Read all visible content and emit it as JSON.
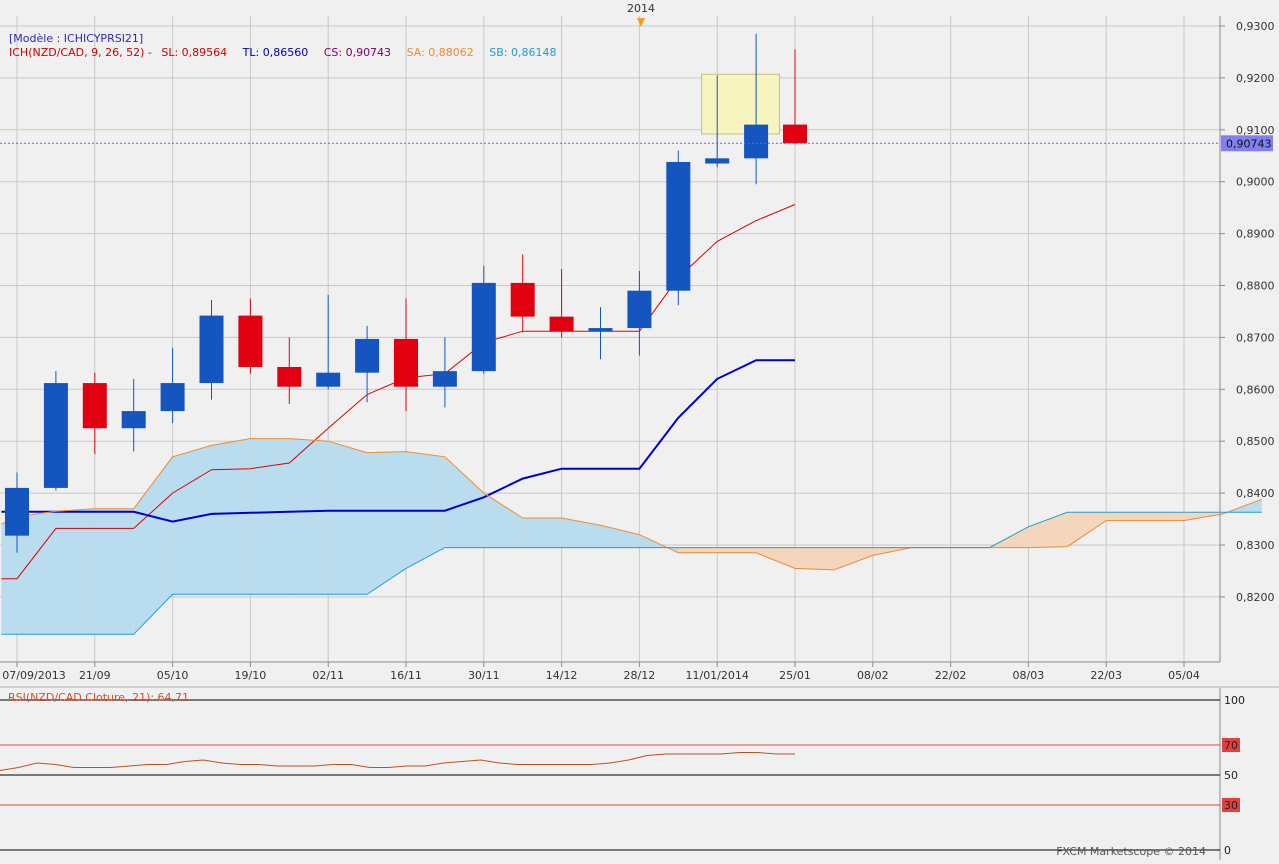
{
  "header": {
    "year_marker": "2014"
  },
  "legend": {
    "model": "[Modèle : ICHICYPRSI21]",
    "ich_label": "ICH(NZD/CAD, 9, 26, 52) -",
    "sl": "SL: 0,89564",
    "tl": "TL: 0,86560",
    "cs": "CS: 0,90743",
    "sa": "SA: 0,88062",
    "sb": "SB: 0,86148"
  },
  "rsi": {
    "label": "RSI(NZD/CAD.Cloture, 21): 64,71",
    "levels": [
      "100",
      "70",
      "50",
      "30",
      "0"
    ],
    "level_values": [
      100,
      70,
      50,
      30,
      0
    ],
    "colors": {
      "line": "#c05020",
      "band": "#e04a3a",
      "mid": "#000000"
    },
    "values": [
      53,
      55,
      58,
      57,
      55,
      55,
      55,
      56,
      57,
      57,
      59,
      60,
      58,
      57,
      57,
      56,
      56,
      56,
      57,
      57,
      55,
      55,
      56,
      56,
      58,
      59,
      60,
      58,
      57,
      57,
      57,
      57,
      57,
      58,
      60,
      63,
      64,
      64,
      64,
      64,
      65,
      65,
      64,
      64
    ]
  },
  "footer": {
    "credit": "FXCM Marketscope © 2014"
  },
  "chart_data": {
    "type": "candlestick",
    "instrument": "NZD/CAD",
    "current_price_label": "0,90743",
    "ylim": [
      0.812,
      0.936
    ],
    "y_ticks": [
      {
        "v": 0.82,
        "label": "0,8200"
      },
      {
        "v": 0.83,
        "label": "0,8300"
      },
      {
        "v": 0.84,
        "label": "0,8400"
      },
      {
        "v": 0.85,
        "label": "0,8500"
      },
      {
        "v": 0.86,
        "label": "0,8600"
      },
      {
        "v": 0.87,
        "label": "0,8700"
      },
      {
        "v": 0.88,
        "label": "0,8800"
      },
      {
        "v": 0.89,
        "label": "0,8900"
      },
      {
        "v": 0.9,
        "label": "0,9000"
      },
      {
        "v": 0.91,
        "label": "0,9100"
      },
      {
        "v": 0.92,
        "label": "0,9200"
      },
      {
        "v": 0.93,
        "label": "0,9300"
      }
    ],
    "x_ticks": [
      "07/09/2013",
      "21/09",
      "05/10",
      "19/10",
      "02/11",
      "16/11",
      "30/11",
      "14/12",
      "28/12",
      "11/01/2014",
      "25/01",
      "08/02",
      "22/02",
      "08/03",
      "22/03",
      "05/04"
    ],
    "candles": [
      {
        "o": 0.8318,
        "h": 0.844,
        "l": 0.8285,
        "c": 0.841
      },
      {
        "o": 0.841,
        "h": 0.8635,
        "l": 0.8405,
        "c": 0.8612
      },
      {
        "o": 0.8612,
        "h": 0.8632,
        "l": 0.8475,
        "c": 0.8525
      },
      {
        "o": 0.8525,
        "h": 0.862,
        "l": 0.848,
        "c": 0.8558
      },
      {
        "o": 0.8558,
        "h": 0.868,
        "l": 0.8535,
        "c": 0.8612
      },
      {
        "o": 0.8612,
        "h": 0.8772,
        "l": 0.858,
        "c": 0.8742
      },
      {
        "o": 0.8742,
        "h": 0.8775,
        "l": 0.863,
        "c": 0.8643
      },
      {
        "o": 0.8643,
        "h": 0.87,
        "l": 0.8572,
        "c": 0.8605
      },
      {
        "o": 0.8605,
        "h": 0.8782,
        "l": 0.86,
        "c": 0.8632
      },
      {
        "o": 0.8632,
        "h": 0.8722,
        "l": 0.8575,
        "c": 0.8697
      },
      {
        "o": 0.8697,
        "h": 0.8775,
        "l": 0.8558,
        "c": 0.8605
      },
      {
        "o": 0.8605,
        "h": 0.87,
        "l": 0.8565,
        "c": 0.8635
      },
      {
        "o": 0.8635,
        "h": 0.8838,
        "l": 0.863,
        "c": 0.8805
      },
      {
        "o": 0.8805,
        "h": 0.886,
        "l": 0.871,
        "c": 0.874
      },
      {
        "o": 0.874,
        "h": 0.8832,
        "l": 0.87,
        "c": 0.8712
      },
      {
        "o": 0.8712,
        "h": 0.8758,
        "l": 0.8658,
        "c": 0.8718
      },
      {
        "o": 0.8718,
        "h": 0.8828,
        "l": 0.8665,
        "c": 0.879
      },
      {
        "o": 0.879,
        "h": 0.906,
        "l": 0.8762,
        "c": 0.9038
      },
      {
        "o": 0.9035,
        "h": 0.9205,
        "l": 0.9028,
        "c": 0.9045
      },
      {
        "o": 0.9045,
        "h": 0.9285,
        "l": 0.8995,
        "c": 0.911
      },
      {
        "o": 0.911,
        "h": 0.9255,
        "l": 0.9072,
        "c": 0.9074
      }
    ],
    "lines": {
      "tenkan": {
        "color": "#dd0000",
        "points": [
          [
            -0.4,
            0.8235
          ],
          [
            0,
            0.8235
          ],
          [
            1,
            0.8332
          ],
          [
            2,
            0.8332
          ],
          [
            3,
            0.8332
          ],
          [
            4,
            0.84
          ],
          [
            5,
            0.8445
          ],
          [
            6,
            0.8447
          ],
          [
            7,
            0.8458
          ],
          [
            8,
            0.8525
          ],
          [
            9,
            0.859
          ],
          [
            10,
            0.8622
          ],
          [
            11,
            0.863
          ],
          [
            12,
            0.869
          ],
          [
            13,
            0.8712
          ],
          [
            14,
            0.8712
          ],
          [
            15,
            0.8712
          ],
          [
            16,
            0.8712
          ],
          [
            17,
            0.8815
          ],
          [
            18,
            0.8885
          ],
          [
            19,
            0.8925
          ],
          [
            20,
            0.8956
          ]
        ]
      },
      "kijun": {
        "color": "#0000cc",
        "points": [
          [
            -0.4,
            0.8364
          ],
          [
            0,
            0.8364
          ],
          [
            1,
            0.8364
          ],
          [
            2,
            0.8364
          ],
          [
            3,
            0.8364
          ],
          [
            4,
            0.8345
          ],
          [
            5,
            0.836
          ],
          [
            6,
            0.8362
          ],
          [
            7,
            0.8364
          ],
          [
            8,
            0.8366
          ],
          [
            9,
            0.8366
          ],
          [
            10,
            0.8366
          ],
          [
            11,
            0.8366
          ],
          [
            12,
            0.8392
          ],
          [
            13,
            0.8428
          ],
          [
            14,
            0.8447
          ],
          [
            15,
            0.8447
          ],
          [
            16,
            0.8447
          ],
          [
            17,
            0.8545
          ],
          [
            18,
            0.862
          ],
          [
            19,
            0.8656
          ],
          [
            20,
            0.8656
          ]
        ]
      },
      "senkou_a": {
        "color": "#f08a30",
        "points": [
          [
            -0.4,
            0.834
          ],
          [
            0,
            0.8355
          ],
          [
            1,
            0.8365
          ],
          [
            2,
            0.837
          ],
          [
            3,
            0.837
          ],
          [
            4,
            0.847
          ],
          [
            5,
            0.8492
          ],
          [
            6,
            0.8505
          ],
          [
            7,
            0.8505
          ],
          [
            8,
            0.85
          ],
          [
            9,
            0.8478
          ],
          [
            10,
            0.848
          ],
          [
            11,
            0.847
          ],
          [
            12,
            0.84
          ],
          [
            13,
            0.8352
          ],
          [
            14,
            0.8352
          ],
          [
            15,
            0.8338
          ],
          [
            16,
            0.832
          ],
          [
            17,
            0.8285
          ],
          [
            18,
            0.8285
          ],
          [
            19,
            0.8285
          ],
          [
            20,
            0.8255
          ],
          [
            21,
            0.8252
          ],
          [
            22,
            0.828
          ],
          [
            23,
            0.8295
          ],
          [
            24,
            0.8295
          ],
          [
            25,
            0.8295
          ],
          [
            26,
            0.8295
          ],
          [
            27,
            0.8297
          ],
          [
            28,
            0.8347
          ],
          [
            29,
            0.8347
          ],
          [
            30,
            0.8347
          ],
          [
            31,
            0.836
          ],
          [
            32,
            0.8388
          ]
        ]
      },
      "senkou_b": {
        "color": "#1fa0d0",
        "points": [
          [
            -0.4,
            0.8128
          ],
          [
            0,
            0.8128
          ],
          [
            1,
            0.8128
          ],
          [
            2,
            0.8128
          ],
          [
            3,
            0.8128
          ],
          [
            4,
            0.8205
          ],
          [
            5,
            0.8205
          ],
          [
            6,
            0.8205
          ],
          [
            7,
            0.8205
          ],
          [
            8,
            0.8205
          ],
          [
            9,
            0.8205
          ],
          [
            10,
            0.8255
          ],
          [
            11,
            0.8295
          ],
          [
            12,
            0.8295
          ],
          [
            13,
            0.8295
          ],
          [
            14,
            0.8295
          ],
          [
            15,
            0.8295
          ],
          [
            16,
            0.8295
          ],
          [
            17,
            0.8295
          ],
          [
            18,
            0.8295
          ],
          [
            19,
            0.8295
          ],
          [
            20,
            0.8295
          ],
          [
            21,
            0.8295
          ],
          [
            22,
            0.8295
          ],
          [
            23,
            0.8295
          ],
          [
            24,
            0.8295
          ],
          [
            25,
            0.8295
          ],
          [
            26,
            0.8335
          ],
          [
            27,
            0.8363
          ],
          [
            28,
            0.8363
          ],
          [
            29,
            0.8363
          ],
          [
            30,
            0.8363
          ],
          [
            31,
            0.8363
          ],
          [
            32,
            0.8363
          ]
        ]
      }
    },
    "colors": {
      "bull": "#1555c0",
      "bear": "#e00010",
      "cloud_bull": "#b9dcef",
      "cloud_bear": "#f3d6bc",
      "current_price_bg": "#8080f0",
      "highlight_fill": "#f8f4c0",
      "highlight_stroke": "#c8c080",
      "grid": "#c8c8c8"
    },
    "highlight_box": {
      "from": 17.6,
      "to": 19.6,
      "low": 0.9092,
      "high": 0.9207
    }
  }
}
